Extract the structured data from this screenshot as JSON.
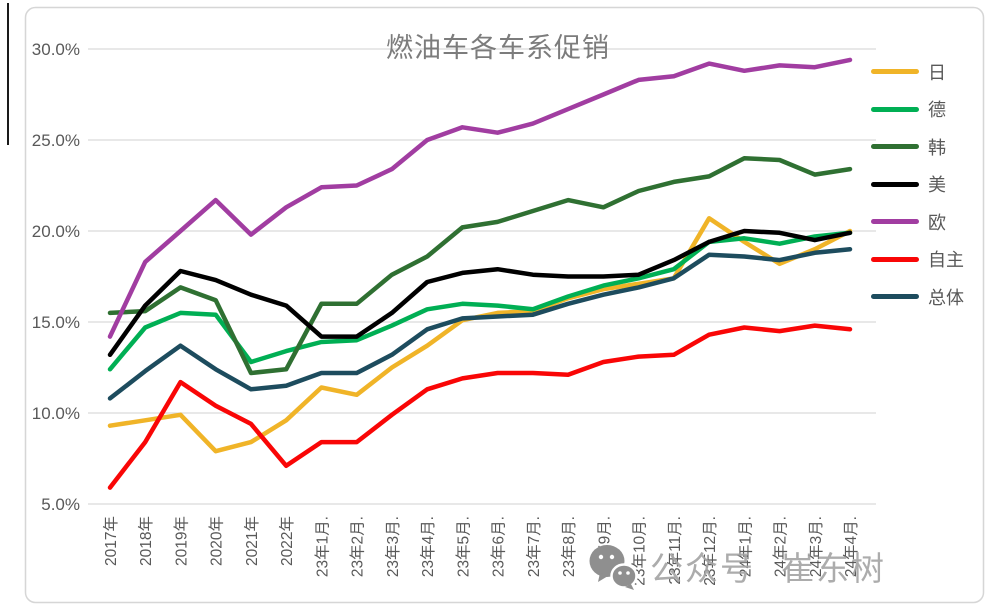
{
  "title": "燃油车各车系促销",
  "watermark": {
    "icon": "wechat-icon",
    "text1": "公众号",
    "text2": "崔东树"
  },
  "y_axis": {
    "ticks": [
      "30.0%",
      "25.0%",
      "20.0%",
      "15.0%",
      "10.0%",
      "5.0%"
    ]
  },
  "chart_data": {
    "type": "line",
    "title": "燃油车各车系促销",
    "grid": "horizontal",
    "legend_position": "right",
    "ylim": [
      5,
      30
    ],
    "y_tick_step": 5,
    "y_tick_format": "percent",
    "gridline_color": "#d9d9d9",
    "axis_text_color": "#595959",
    "categories": [
      "2017年",
      "2018年",
      "2019年",
      "2020年",
      "2021年",
      "2022年",
      "23年1月.",
      "23年2月.",
      "23年3月.",
      "23年4月.",
      "23年5月.",
      "23年6月.",
      "23年7月.",
      "23年8月.",
      "23年9月.",
      "23年10月.",
      "23年11月.",
      "23年12月.",
      "24年1月.",
      "24年2月.",
      "24年3月.",
      "24年4月."
    ],
    "series": [
      {
        "name": "日",
        "color": "#f0b428",
        "values": [
          9.3,
          9.6,
          9.9,
          7.9,
          8.4,
          9.6,
          11.4,
          11.0,
          12.5,
          13.7,
          15.1,
          15.5,
          15.6,
          16.3,
          16.8,
          17.1,
          17.4,
          20.7,
          19.4,
          18.2,
          19.0,
          20.0
        ]
      },
      {
        "name": "德",
        "color": "#00af54",
        "values": [
          12.4,
          14.7,
          15.5,
          15.4,
          12.8,
          13.4,
          13.9,
          14.0,
          14.8,
          15.7,
          16.0,
          15.9,
          15.7,
          16.4,
          17.0,
          17.4,
          17.9,
          19.4,
          19.6,
          19.3,
          19.7,
          19.9
        ]
      },
      {
        "name": "韩",
        "color": "#2f7032",
        "values": [
          15.5,
          15.6,
          16.9,
          16.2,
          12.2,
          12.4,
          16.0,
          16.0,
          17.6,
          18.6,
          20.2,
          20.5,
          21.1,
          21.7,
          21.3,
          22.2,
          22.7,
          23.0,
          24.0,
          23.9,
          23.1,
          23.4
        ]
      },
      {
        "name": "美",
        "color": "#000000",
        "values": [
          13.2,
          15.9,
          17.8,
          17.3,
          16.5,
          15.9,
          14.2,
          14.2,
          15.5,
          17.2,
          17.7,
          17.9,
          17.6,
          17.5,
          17.5,
          17.6,
          18.4,
          19.4,
          20.0,
          19.9,
          19.5,
          19.9
        ]
      },
      {
        "name": "欧",
        "color": "#a13da1",
        "values": [
          14.2,
          18.3,
          20.0,
          21.7,
          19.8,
          21.3,
          22.4,
          22.5,
          23.4,
          25.0,
          25.7,
          25.4,
          25.9,
          26.7,
          27.5,
          28.3,
          28.5,
          29.2,
          28.8,
          29.1,
          29.0,
          29.4
        ]
      },
      {
        "name": "自主",
        "color": "#f90606",
        "values": [
          5.9,
          8.4,
          11.7,
          10.4,
          9.4,
          7.1,
          8.4,
          8.4,
          9.9,
          11.3,
          11.9,
          12.2,
          12.2,
          12.1,
          12.8,
          13.1,
          13.2,
          14.3,
          14.7,
          14.5,
          14.8,
          14.6
        ]
      },
      {
        "name": "总体",
        "color": "#1d4c5e",
        "values": [
          10.8,
          12.3,
          13.7,
          12.4,
          11.3,
          11.5,
          12.2,
          12.2,
          13.2,
          14.6,
          15.2,
          15.3,
          15.4,
          16.0,
          16.5,
          16.9,
          17.4,
          18.7,
          18.6,
          18.4,
          18.8,
          19.0
        ]
      }
    ]
  }
}
